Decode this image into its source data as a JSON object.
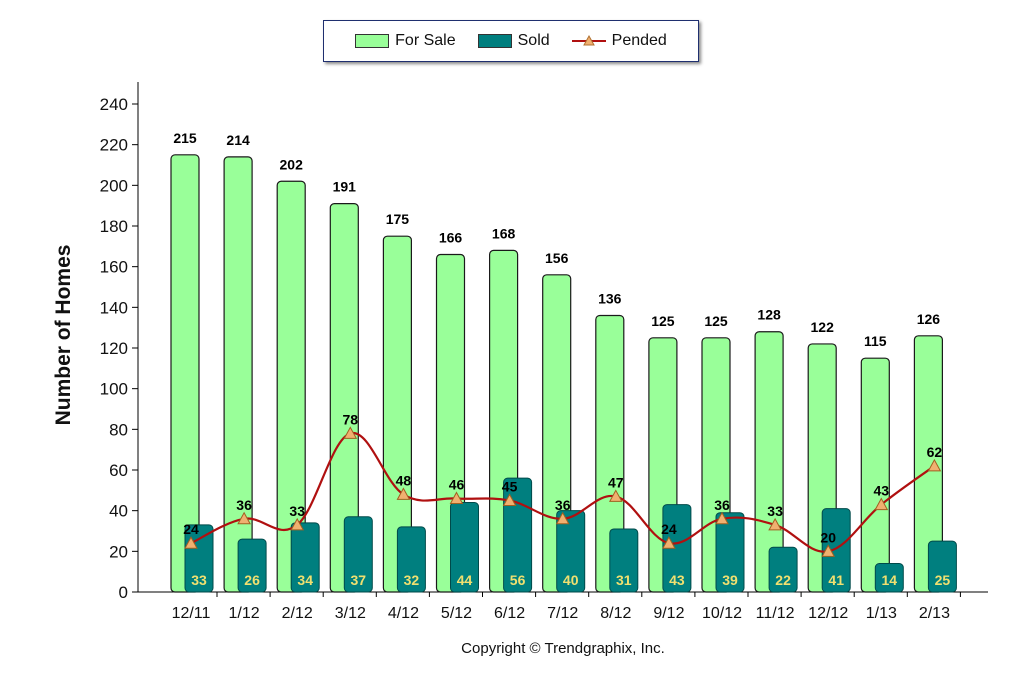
{
  "chart_data": {
    "type": "bar",
    "categories": [
      "12/11",
      "1/12",
      "2/12",
      "3/12",
      "4/12",
      "5/12",
      "6/12",
      "7/12",
      "8/12",
      "9/12",
      "10/12",
      "11/12",
      "12/12",
      "1/13",
      "2/13"
    ],
    "series": [
      {
        "name": "For Sale",
        "type": "bar",
        "color": "#99ff99",
        "values": [
          215,
          214,
          202,
          191,
          175,
          166,
          168,
          156,
          136,
          125,
          125,
          128,
          122,
          115,
          126
        ]
      },
      {
        "name": "Sold",
        "type": "bar",
        "color": "#007f7f",
        "values": [
          33,
          26,
          34,
          37,
          32,
          44,
          56,
          40,
          31,
          43,
          39,
          22,
          41,
          14,
          25
        ]
      },
      {
        "name": "Pended",
        "type": "line",
        "color": "#b01010",
        "values": [
          24,
          36,
          33,
          78,
          48,
          46,
          45,
          36,
          47,
          24,
          36,
          33,
          20,
          43,
          62
        ]
      }
    ],
    "ylabel": "Number of Homes",
    "xlabel": "",
    "ylim": [
      0,
      240
    ],
    "yticks": [
      0,
      20,
      40,
      60,
      80,
      100,
      120,
      140,
      160,
      180,
      200,
      220,
      240
    ],
    "legend_position": "top-center",
    "grid": false
  },
  "copyright": "Copyright © Trendgraphix, Inc."
}
